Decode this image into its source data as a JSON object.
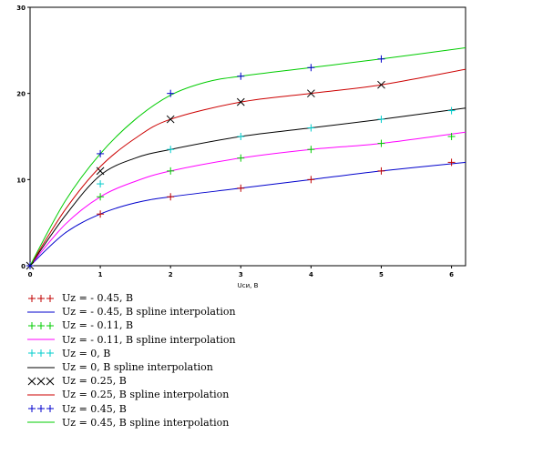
{
  "chart_data": {
    "type": "line",
    "title": "",
    "xlabel": "Uси, В",
    "ylabel": "",
    "xlim": [
      0,
      6.2
    ],
    "ylim": [
      0,
      30
    ],
    "xticks": [
      0,
      1,
      2,
      3,
      4,
      5,
      6
    ],
    "yticks": [
      0,
      10,
      20,
      30
    ],
    "grid": false,
    "legend_position": "bottom-left",
    "series": [
      {
        "name": "Uz = - 0.45, В",
        "kind": "markers",
        "marker": "plus",
        "color": "#c00000",
        "x": [
          0,
          1,
          2,
          3,
          4,
          5,
          6
        ],
        "y": [
          0,
          6,
          8,
          9,
          10,
          11,
          12
        ]
      },
      {
        "name": "Uz = - 0.45, В  spline interpolation",
        "kind": "line",
        "color": "#0000cc",
        "x": [
          0,
          0.5,
          1,
          1.5,
          2,
          3,
          4,
          5,
          6.2
        ],
        "y": [
          0,
          3.8,
          6,
          7.3,
          8,
          9,
          10,
          11,
          12
        ]
      },
      {
        "name": "Uz = - 0.11, В",
        "kind": "markers",
        "marker": "plus",
        "color": "#00cc00",
        "x": [
          0,
          1,
          2,
          3,
          4,
          5,
          6
        ],
        "y": [
          0,
          8,
          11,
          12.5,
          13.5,
          14.2,
          15
        ]
      },
      {
        "name": "Uz = - 0.11, В  spline interpolation",
        "kind": "line",
        "color": "#ff00ff",
        "x": [
          0,
          0.5,
          1,
          1.5,
          2,
          3,
          4,
          5,
          6.2
        ],
        "y": [
          0,
          4.8,
          8,
          9.8,
          11,
          12.5,
          13.5,
          14.2,
          15.5
        ]
      },
      {
        "name": "Uz = 0, В",
        "kind": "markers",
        "marker": "plus",
        "color": "#00cccc",
        "x": [
          0,
          1,
          2,
          3,
          4,
          5,
          6
        ],
        "y": [
          0,
          9.5,
          13.5,
          15,
          16,
          17,
          18
        ]
      },
      {
        "name": "Uz = 0, В  spline interpolation",
        "kind": "line",
        "color": "#000000",
        "x": [
          0,
          0.5,
          1,
          1.5,
          2,
          3,
          4,
          5,
          6.2
        ],
        "y": [
          0,
          5.8,
          10.5,
          12.5,
          13.5,
          15,
          16,
          17,
          18.3
        ]
      },
      {
        "name": "Uz = 0.25, В",
        "kind": "markers",
        "marker": "x",
        "color": "#000000",
        "x": [
          0,
          1,
          2,
          3,
          4,
          5
        ],
        "y": [
          0,
          11,
          17,
          19,
          20,
          21
        ]
      },
      {
        "name": "Uz = 0.25, В  spline interpolation",
        "kind": "line",
        "color": "#cc0000",
        "x": [
          0,
          0.5,
          1,
          1.5,
          2,
          3,
          4,
          5,
          6.2
        ],
        "y": [
          0,
          6.5,
          11.5,
          14.8,
          17,
          19,
          20,
          21,
          22.8
        ]
      },
      {
        "name": "Uz = 0.45, В",
        "kind": "markers",
        "marker": "plus",
        "color": "#0000cc",
        "x": [
          0,
          1,
          2,
          3,
          4,
          5
        ],
        "y": [
          0,
          13,
          20,
          22,
          23,
          24
        ]
      },
      {
        "name": "Uz = 0.45, В  spline interpolation",
        "kind": "line",
        "color": "#00cc00",
        "x": [
          0,
          0.5,
          1,
          1.5,
          2,
          2.5,
          3,
          4,
          5,
          6.2
        ],
        "y": [
          0,
          7.5,
          13,
          17,
          19.8,
          21.3,
          22,
          23,
          24,
          25.3
        ]
      }
    ]
  }
}
